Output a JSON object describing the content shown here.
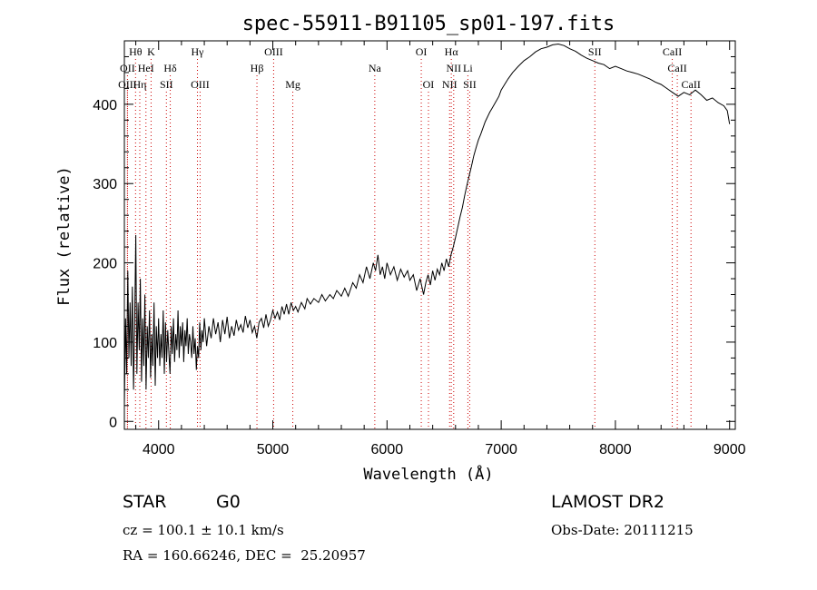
{
  "chart_data": {
    "type": "line",
    "title": "spec-55911-B91105_sp01-197.fits",
    "xlabel": "Wavelength (Å)",
    "ylabel": "Flux (relative)",
    "xlim": [
      3700,
      9050
    ],
    "ylim": [
      -10,
      480
    ],
    "x_ticks": [
      4000,
      5000,
      6000,
      7000,
      8000,
      9000
    ],
    "y_ticks": [
      0,
      100,
      200,
      300,
      400
    ],
    "series": [
      {
        "color": "#000000",
        "points": [
          [
            3700,
            20
          ],
          [
            3710,
            130
          ],
          [
            3720,
            60
          ],
          [
            3730,
            190
          ],
          [
            3740,
            80
          ],
          [
            3750,
            150
          ],
          [
            3760,
            70
          ],
          [
            3770,
            170
          ],
          [
            3780,
            40
          ],
          [
            3790,
            120
          ],
          [
            3800,
            235
          ],
          [
            3810,
            60
          ],
          [
            3820,
            150
          ],
          [
            3830,
            90
          ],
          [
            3840,
            180
          ],
          [
            3850,
            50
          ],
          [
            3860,
            130
          ],
          [
            3870,
            70
          ],
          [
            3880,
            160
          ],
          [
            3890,
            40
          ],
          [
            3900,
            120
          ],
          [
            3910,
            80
          ],
          [
            3920,
            140
          ],
          [
            3930,
            55
          ],
          [
            3940,
            110
          ],
          [
            3950,
            70
          ],
          [
            3960,
            150
          ],
          [
            3970,
            45
          ],
          [
            3980,
            120
          ],
          [
            3990,
            80
          ],
          [
            4000,
            130
          ],
          [
            4010,
            70
          ],
          [
            4020,
            110
          ],
          [
            4030,
            80
          ],
          [
            4040,
            140
          ],
          [
            4050,
            60
          ],
          [
            4060,
            125
          ],
          [
            4070,
            75
          ],
          [
            4080,
            115
          ],
          [
            4090,
            85
          ],
          [
            4100,
            60
          ],
          [
            4110,
            120
          ],
          [
            4120,
            85
          ],
          [
            4130,
            130
          ],
          [
            4140,
            75
          ],
          [
            4150,
            110
          ],
          [
            4160,
            90
          ],
          [
            4170,
            140
          ],
          [
            4180,
            80
          ],
          [
            4190,
            120
          ],
          [
            4200,
            95
          ],
          [
            4210,
            125
          ],
          [
            4220,
            75
          ],
          [
            4230,
            115
          ],
          [
            4240,
            95
          ],
          [
            4250,
            130
          ],
          [
            4260,
            85
          ],
          [
            4270,
            110
          ],
          [
            4280,
            100
          ],
          [
            4290,
            80
          ],
          [
            4300,
            120
          ],
          [
            4310,
            85
          ],
          [
            4320,
            105
          ],
          [
            4330,
            65
          ],
          [
            4340,
            95
          ],
          [
            4350,
            80
          ],
          [
            4360,
            125
          ],
          [
            4370,
            90
          ],
          [
            4380,
            115
          ],
          [
            4390,
            100
          ],
          [
            4400,
            130
          ],
          [
            4420,
            95
          ],
          [
            4440,
            120
          ],
          [
            4460,
            105
          ],
          [
            4480,
            130
          ],
          [
            4500,
            110
          ],
          [
            4520,
            125
          ],
          [
            4540,
            100
          ],
          [
            4560,
            128
          ],
          [
            4580,
            110
          ],
          [
            4600,
            132
          ],
          [
            4620,
            105
          ],
          [
            4640,
            120
          ],
          [
            4660,
            108
          ],
          [
            4680,
            128
          ],
          [
            4700,
            115
          ],
          [
            4720,
            122
          ],
          [
            4740,
            112
          ],
          [
            4760,
            133
          ],
          [
            4780,
            118
          ],
          [
            4800,
            128
          ],
          [
            4820,
            112
          ],
          [
            4840,
            120
          ],
          [
            4860,
            105
          ],
          [
            4880,
            125
          ],
          [
            4900,
            130
          ],
          [
            4920,
            118
          ],
          [
            4940,
            135
          ],
          [
            4960,
            120
          ],
          [
            4980,
            128
          ],
          [
            5000,
            140
          ],
          [
            5020,
            130
          ],
          [
            5040,
            138
          ],
          [
            5060,
            128
          ],
          [
            5080,
            145
          ],
          [
            5100,
            135
          ],
          [
            5120,
            148
          ],
          [
            5140,
            135
          ],
          [
            5160,
            150
          ],
          [
            5180,
            140
          ],
          [
            5200,
            145
          ],
          [
            5220,
            138
          ],
          [
            5250,
            150
          ],
          [
            5280,
            142
          ],
          [
            5300,
            155
          ],
          [
            5330,
            148
          ],
          [
            5360,
            155
          ],
          [
            5400,
            150
          ],
          [
            5430,
            160
          ],
          [
            5460,
            152
          ],
          [
            5500,
            160
          ],
          [
            5530,
            155
          ],
          [
            5560,
            165
          ],
          [
            5600,
            158
          ],
          [
            5630,
            168
          ],
          [
            5660,
            158
          ],
          [
            5700,
            175
          ],
          [
            5730,
            168
          ],
          [
            5760,
            185
          ],
          [
            5790,
            175
          ],
          [
            5820,
            195
          ],
          [
            5850,
            180
          ],
          [
            5880,
            200
          ],
          [
            5900,
            190
          ],
          [
            5920,
            210
          ],
          [
            5940,
            185
          ],
          [
            5960,
            195
          ],
          [
            5980,
            180
          ],
          [
            6000,
            200
          ],
          [
            6030,
            185
          ],
          [
            6060,
            195
          ],
          [
            6090,
            178
          ],
          [
            6120,
            192
          ],
          [
            6150,
            182
          ],
          [
            6180,
            190
          ],
          [
            6200,
            178
          ],
          [
            6230,
            185
          ],
          [
            6260,
            165
          ],
          [
            6290,
            180
          ],
          [
            6320,
            160
          ],
          [
            6340,
            175
          ],
          [
            6360,
            185
          ],
          [
            6380,
            172
          ],
          [
            6400,
            190
          ],
          [
            6420,
            178
          ],
          [
            6440,
            192
          ],
          [
            6460,
            185
          ],
          [
            6480,
            200
          ],
          [
            6500,
            190
          ],
          [
            6520,
            205
          ],
          [
            6540,
            195
          ],
          [
            6560,
            210
          ],
          [
            6580,
            220
          ],
          [
            6600,
            232
          ],
          [
            6620,
            245
          ],
          [
            6640,
            258
          ],
          [
            6660,
            270
          ],
          [
            6680,
            285
          ],
          [
            6700,
            298
          ],
          [
            6720,
            310
          ],
          [
            6740,
            322
          ],
          [
            6760,
            335
          ],
          [
            6780,
            345
          ],
          [
            6800,
            355
          ],
          [
            6820,
            362
          ],
          [
            6840,
            370
          ],
          [
            6860,
            378
          ],
          [
            6880,
            384
          ],
          [
            6900,
            390
          ],
          [
            6920,
            395
          ],
          [
            6940,
            400
          ],
          [
            6960,
            405
          ],
          [
            6980,
            410
          ],
          [
            7000,
            418
          ],
          [
            7030,
            425
          ],
          [
            7060,
            432
          ],
          [
            7100,
            440
          ],
          [
            7150,
            448
          ],
          [
            7200,
            455
          ],
          [
            7250,
            460
          ],
          [
            7300,
            466
          ],
          [
            7350,
            470
          ],
          [
            7400,
            472
          ],
          [
            7450,
            475
          ],
          [
            7500,
            476
          ],
          [
            7550,
            474
          ],
          [
            7600,
            470
          ],
          [
            7650,
            467
          ],
          [
            7700,
            462
          ],
          [
            7750,
            458
          ],
          [
            7800,
            455
          ],
          [
            7850,
            452
          ],
          [
            7900,
            450
          ],
          [
            7950,
            445
          ],
          [
            8000,
            448
          ],
          [
            8050,
            445
          ],
          [
            8100,
            442
          ],
          [
            8150,
            440
          ],
          [
            8200,
            438
          ],
          [
            8250,
            435
          ],
          [
            8300,
            432
          ],
          [
            8350,
            428
          ],
          [
            8400,
            425
          ],
          [
            8450,
            420
          ],
          [
            8500,
            415
          ],
          [
            8550,
            410
          ],
          [
            8600,
            415
          ],
          [
            8650,
            412
          ],
          [
            8700,
            418
          ],
          [
            8750,
            412
          ],
          [
            8800,
            405
          ],
          [
            8850,
            408
          ],
          [
            8900,
            402
          ],
          [
            8950,
            398
          ],
          [
            8980,
            392
          ],
          [
            9000,
            375
          ]
        ]
      }
    ],
    "line_markers": [
      {
        "label": "Hθ",
        "x": 3798,
        "row": 1
      },
      {
        "label": "K",
        "x": 3934,
        "row": 1
      },
      {
        "label": "Hγ",
        "x": 4340,
        "row": 1
      },
      {
        "label": "OIII",
        "x": 5007,
        "row": 1
      },
      {
        "label": "OI",
        "x": 6300,
        "row": 1
      },
      {
        "label": "Hα",
        "x": 6563,
        "row": 1
      },
      {
        "label": "SII",
        "x": 7820,
        "row": 1
      },
      {
        "label": "CaII",
        "x": 8498,
        "row": 1
      },
      {
        "label": "OII",
        "x": 3727,
        "row": 2
      },
      {
        "label": "HeI",
        "x": 3889,
        "row": 2
      },
      {
        "label": "Hδ",
        "x": 4102,
        "row": 2
      },
      {
        "label": "Hβ",
        "x": 4861,
        "row": 2
      },
      {
        "label": "Na",
        "x": 5893,
        "row": 2
      },
      {
        "label": "NII",
        "x": 6584,
        "row": 2
      },
      {
        "label": "Li",
        "x": 6708,
        "row": 2
      },
      {
        "label": "CaII",
        "x": 8542,
        "row": 2
      },
      {
        "label": "OIII",
        "x": 3727,
        "row": 3
      },
      {
        "label": "Hη",
        "x": 3835,
        "row": 3
      },
      {
        "label": "SII",
        "x": 4068,
        "row": 3
      },
      {
        "label": "OIII",
        "x": 4363,
        "row": 3
      },
      {
        "label": "Mg",
        "x": 5175,
        "row": 3
      },
      {
        "label": "OI",
        "x": 6363,
        "row": 3
      },
      {
        "label": "NII",
        "x": 6548,
        "row": 3
      },
      {
        "label": "SII",
        "x": 6724,
        "row": 3
      },
      {
        "label": "CaII",
        "x": 8662,
        "row": 3
      }
    ],
    "marker_color": "#cc0000"
  },
  "footer": {
    "object_class": "STAR",
    "subclass": "G0",
    "survey": "LAMOST DR2",
    "cz": "cz = 100.1 ± 10.1 km/s",
    "obs_date": "Obs-Date: 20111215",
    "coords": "RA = 160.66246, DEC =  25.20957"
  }
}
